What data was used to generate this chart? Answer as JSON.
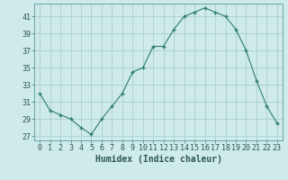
{
  "x": [
    0,
    1,
    2,
    3,
    4,
    5,
    6,
    7,
    8,
    9,
    10,
    11,
    12,
    13,
    14,
    15,
    16,
    17,
    18,
    19,
    20,
    21,
    22,
    23
  ],
  "y": [
    32,
    30,
    29.5,
    29,
    28,
    27.2,
    29,
    30.5,
    32,
    34.5,
    35,
    37.5,
    37.5,
    39.5,
    41,
    41.5,
    42,
    41.5,
    41,
    39.5,
    37,
    33.5,
    30.5,
    28.5
  ],
  "line_color": "#2e7d6e",
  "marker_color": "#2e7d6e",
  "bg_color": "#ceeaea",
  "grid_color": "#aacfcf",
  "xlabel": "Humidex (Indice chaleur)",
  "xlim": [
    -0.5,
    23.5
  ],
  "ylim": [
    26.5,
    42.5
  ],
  "yticks": [
    27,
    29,
    31,
    33,
    35,
    37,
    39,
    41
  ],
  "xtick_labels": [
    "0",
    "1",
    "2",
    "3",
    "4",
    "5",
    "6",
    "7",
    "8",
    "9",
    "10",
    "11",
    "12",
    "13",
    "14",
    "15",
    "16",
    "17",
    "18",
    "19",
    "20",
    "21",
    "22",
    "23"
  ],
  "tick_fontsize": 6.0,
  "xlabel_fontsize": 7.0
}
